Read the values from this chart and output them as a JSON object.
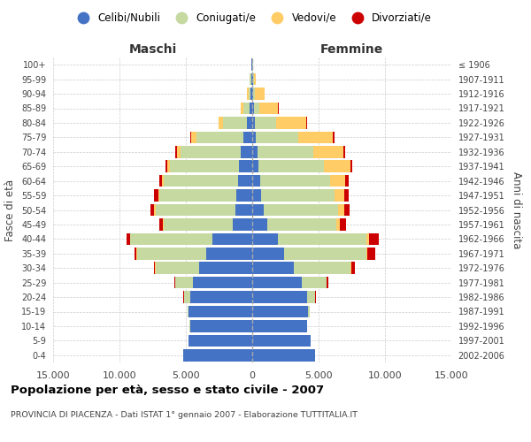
{
  "age_groups": [
    "0-4",
    "5-9",
    "10-14",
    "15-19",
    "20-24",
    "25-29",
    "30-34",
    "35-39",
    "40-44",
    "45-49",
    "50-54",
    "55-59",
    "60-64",
    "65-69",
    "70-74",
    "75-79",
    "80-84",
    "85-89",
    "90-94",
    "95-99",
    "100+"
  ],
  "birth_years": [
    "2002-2006",
    "1997-2001",
    "1992-1996",
    "1987-1991",
    "1982-1986",
    "1977-1981",
    "1972-1976",
    "1967-1971",
    "1962-1966",
    "1957-1961",
    "1952-1956",
    "1947-1951",
    "1942-1946",
    "1937-1941",
    "1932-1936",
    "1927-1931",
    "1922-1926",
    "1917-1921",
    "1912-1916",
    "1907-1911",
    "≤ 1906"
  ],
  "male_celibi": [
    5200,
    4800,
    4700,
    4800,
    4700,
    4500,
    4000,
    3500,
    3000,
    1500,
    1300,
    1200,
    1100,
    1000,
    900,
    700,
    400,
    200,
    150,
    100,
    50
  ],
  "male_coniugati": [
    2,
    4,
    15,
    80,
    450,
    1300,
    3300,
    5200,
    6200,
    5200,
    6000,
    5800,
    5600,
    5200,
    4500,
    3500,
    1800,
    500,
    150,
    80,
    40
  ],
  "male_vedovi": [
    1,
    1,
    1,
    2,
    4,
    4,
    8,
    15,
    25,
    40,
    70,
    90,
    130,
    180,
    280,
    380,
    320,
    180,
    100,
    30,
    5
  ],
  "male_divorziati": [
    1,
    2,
    4,
    8,
    15,
    40,
    90,
    180,
    230,
    280,
    320,
    280,
    180,
    140,
    90,
    70,
    25,
    15,
    10,
    8,
    3
  ],
  "female_nubili": [
    4700,
    4400,
    4100,
    4200,
    4100,
    3700,
    3100,
    2400,
    1900,
    1150,
    860,
    670,
    580,
    480,
    380,
    280,
    180,
    130,
    60,
    40,
    15
  ],
  "female_coniugate": [
    2,
    4,
    18,
    130,
    650,
    1900,
    4300,
    6200,
    6700,
    5200,
    5600,
    5500,
    5300,
    4900,
    4200,
    3200,
    1600,
    430,
    160,
    60,
    25
  ],
  "female_vedove": [
    1,
    1,
    2,
    4,
    9,
    18,
    45,
    90,
    180,
    270,
    450,
    730,
    1100,
    2000,
    2300,
    2600,
    2300,
    1400,
    700,
    170,
    25
  ],
  "female_divorziate": [
    1,
    2,
    4,
    8,
    25,
    90,
    280,
    570,
    750,
    470,
    420,
    370,
    270,
    180,
    130,
    90,
    45,
    25,
    15,
    8,
    1
  ],
  "colors": {
    "celibi": "#4472C4",
    "coniugati": "#C5D9A0",
    "vedovi": "#FFCC66",
    "divorziati": "#CC0000"
  },
  "title": "Popolazione per età, sesso e stato civile - 2007",
  "subtitle": "PROVINCIA DI PIACENZA - Dati ISTAT 1° gennaio 2007 - Elaborazione TUTTITALIA.IT",
  "xlabel_left": "Maschi",
  "xlabel_right": "Femmine",
  "ylabel_left": "Fasce di età",
  "ylabel_right": "Anni di nascita",
  "xlim": 15000,
  "legend_labels": [
    "Celibi/Nubili",
    "Coniugati/e",
    "Vedovi/e",
    "Divorziati/e"
  ],
  "background_color": "#ffffff",
  "grid_color": "#cccccc",
  "xtick_labels": [
    "15.000",
    "10.000",
    "5.000",
    "0",
    "5.000",
    "10.000",
    "15.000"
  ]
}
